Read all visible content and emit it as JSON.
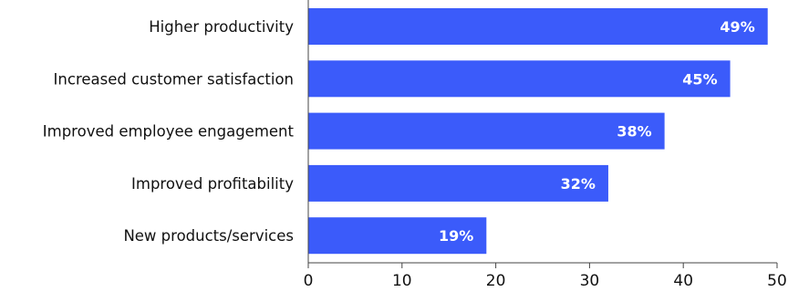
{
  "chart_data": {
    "type": "bar",
    "orientation": "horizontal",
    "categories": [
      "Higher productivity",
      "Increased customer satisfaction",
      "Improved employee engagement",
      "Improved profitability",
      "New products/services"
    ],
    "values": [
      49,
      45,
      38,
      32,
      19
    ],
    "data_labels": [
      "49%",
      "45%",
      "38%",
      "32%",
      "19%"
    ],
    "x_ticks": [
      "0",
      "10",
      "20",
      "30",
      "40",
      "50"
    ],
    "xlim": [
      0,
      50
    ],
    "title": "",
    "xlabel": "",
    "ylabel": "",
    "grid": false,
    "legend": "none",
    "bar_color": "#3b5bfa"
  }
}
